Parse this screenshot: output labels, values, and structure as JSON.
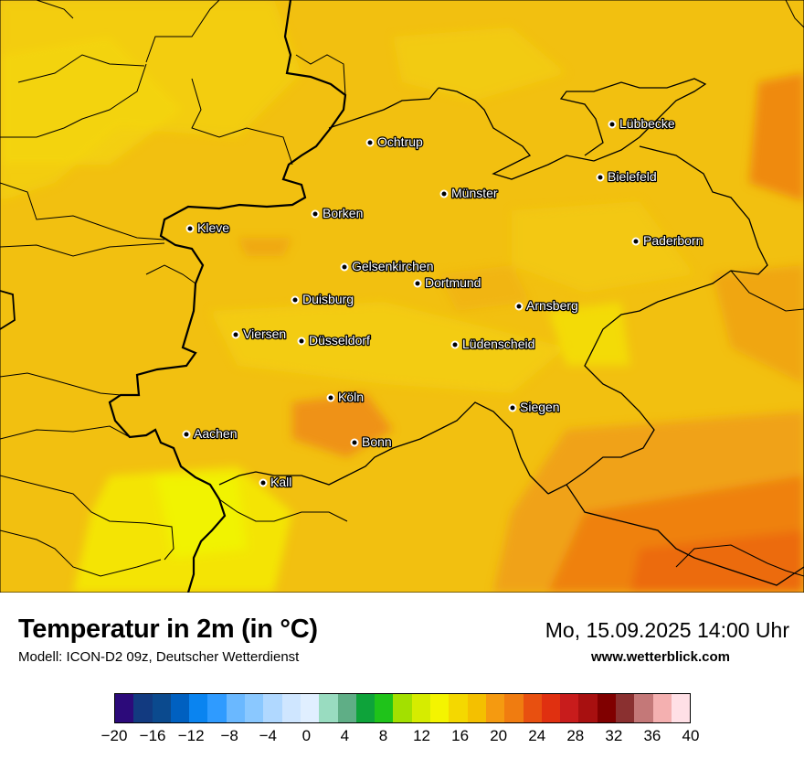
{
  "map": {
    "cities": [
      {
        "name": "Lübbecke"
      },
      {
        "name": "Ochtrup"
      },
      {
        "name": "Bielefeld"
      },
      {
        "name": "Münster"
      },
      {
        "name": "Borken"
      },
      {
        "name": "Kleve"
      },
      {
        "name": "Paderborn"
      },
      {
        "name": "Gelsenkirchen"
      },
      {
        "name": "Dortmund"
      },
      {
        "name": "Duisburg"
      },
      {
        "name": "Arnsberg"
      },
      {
        "name": "Viersen"
      },
      {
        "name": "Düsseldorf"
      },
      {
        "name": "Lüdenscheid"
      },
      {
        "name": "Köln"
      },
      {
        "name": "Siegen"
      },
      {
        "name": "Aachen"
      },
      {
        "name": "Bonn"
      },
      {
        "name": "Kall"
      }
    ]
  },
  "footer": {
    "title": "Temperatur in 2m (in °C)",
    "model": "Modell: ICON-D2 09z, Deutscher Wetterdienst",
    "datetime": "Mo, 15.09.2025 14:00 Uhr",
    "website": "www.wetterblick.com"
  },
  "legend": {
    "ticks": [
      "−20",
      "−16",
      "−12",
      "−8",
      "−4",
      "0",
      "4",
      "8",
      "12",
      "16",
      "20",
      "24",
      "28",
      "32",
      "36",
      "40"
    ],
    "colors": [
      "#2c0a7a",
      "#123a80",
      "#0b4a8e",
      "#0060c0",
      "#0a84f0",
      "#2f9bff",
      "#6ab8ff",
      "#8ac8ff",
      "#b0d8ff",
      "#cfe6ff",
      "#e0efff",
      "#99dcc0",
      "#5fae86",
      "#0ea33a",
      "#1fc31a",
      "#a3e000",
      "#d6ec00",
      "#f4f400",
      "#f4d800",
      "#f4c000",
      "#f59a10",
      "#f07c10",
      "#e85010",
      "#e03010",
      "#c81c1c",
      "#a81010",
      "#800000",
      "#8a3030",
      "#c47878",
      "#f4b0b0",
      "#ffe0e6"
    ],
    "range": [
      -20,
      40
    ]
  }
}
